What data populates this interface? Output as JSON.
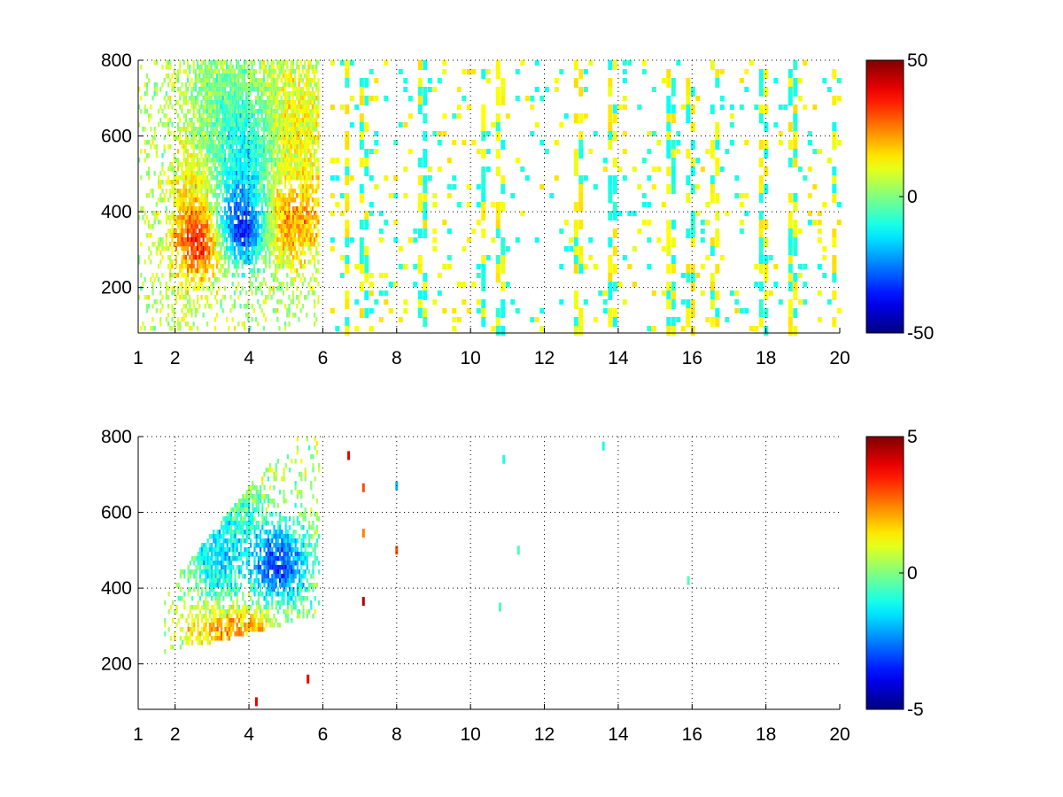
{
  "chart_data": [
    {
      "type": "heatmap",
      "title": "",
      "xlabel": "",
      "ylabel": "",
      "xlim": [
        1,
        20
      ],
      "ylim": [
        80,
        800
      ],
      "x_ticks": [
        "1",
        "2",
        "4",
        "6",
        "8",
        "10",
        "12",
        "14",
        "16",
        "18",
        "20"
      ],
      "x_tick_values": [
        1,
        2,
        4,
        6,
        8,
        10,
        12,
        14,
        16,
        18,
        20
      ],
      "y_ticks": [
        "200",
        "400",
        "600",
        "800"
      ],
      "y_tick_values": [
        200,
        400,
        600,
        800
      ],
      "grid": true,
      "colorbar": {
        "min": -50,
        "max": 50,
        "ticks": [
          "50",
          "0",
          "-50"
        ],
        "tick_values": [
          50,
          0,
          -50
        ],
        "colormap": "jet"
      },
      "blobs": [
        {
          "x": 2.7,
          "y": 320,
          "sx": 0.5,
          "sy": 60,
          "v": 22
        },
        {
          "x": 2.5,
          "y": 420,
          "sx": 0.45,
          "sy": 130,
          "v": 12
        },
        {
          "x": 3.8,
          "y": 360,
          "sx": 0.5,
          "sy": 70,
          "v": -38
        },
        {
          "x": 4.0,
          "y": 520,
          "sx": 0.6,
          "sy": 140,
          "v": -18
        },
        {
          "x": 4.9,
          "y": 380,
          "sx": 0.8,
          "sy": 80,
          "v": 18
        },
        {
          "x": 5.0,
          "y": 620,
          "sx": 0.8,
          "sy": 150,
          "v": 9
        },
        {
          "x": 3.3,
          "y": 650,
          "sx": 0.8,
          "sy": 150,
          "v": -6
        }
      ],
      "dense_region": {
        "x_range": [
          1,
          5.9
        ],
        "y_range": [
          80,
          800
        ]
      },
      "sparse_stripes": [
        6.6,
        7.1,
        8.6,
        10.3,
        10.8,
        12.9,
        13.8,
        15.4,
        15.9,
        16.6,
        17.9,
        18.7,
        19.8
      ]
    },
    {
      "type": "heatmap",
      "title": "",
      "xlabel": "",
      "ylabel": "",
      "xlim": [
        1,
        20
      ],
      "ylim": [
        80,
        800
      ],
      "x_ticks": [
        "1",
        "2",
        "4",
        "6",
        "8",
        "10",
        "12",
        "14",
        "16",
        "18",
        "20"
      ],
      "x_tick_values": [
        1,
        2,
        4,
        6,
        8,
        10,
        12,
        14,
        16,
        18,
        20
      ],
      "y_ticks": [
        "200",
        "400",
        "600",
        "800"
      ],
      "y_tick_values": [
        200,
        400,
        600,
        800
      ],
      "grid": true,
      "colorbar": {
        "min": -5,
        "max": 5,
        "ticks": [
          "5",
          "0",
          "-5"
        ],
        "tick_values": [
          5,
          0,
          -5
        ],
        "colormap": "jet"
      },
      "blobs": [
        {
          "x": 3.6,
          "y": 300,
          "sx": 0.9,
          "sy": 50,
          "v": 2
        },
        {
          "x": 3.1,
          "y": 480,
          "sx": 0.5,
          "sy": 90,
          "v": -1.8
        },
        {
          "x": 4.8,
          "y": 470,
          "sx": 0.6,
          "sy": 80,
          "v": -3.5
        },
        {
          "x": 3.7,
          "y": 600,
          "sx": 0.5,
          "sy": 120,
          "v": -0.5
        }
      ],
      "dense_region": {
        "x_range": [
          1.7,
          5.9
        ],
        "y_range": [
          200,
          790
        ]
      },
      "isolated_points": [
        {
          "x": 6.7,
          "y": 750,
          "v": 4
        },
        {
          "x": 7.1,
          "y": 665,
          "v": 3
        },
        {
          "x": 7.1,
          "y": 545,
          "v": 2.5
        },
        {
          "x": 7.1,
          "y": 365,
          "v": 4.5
        },
        {
          "x": 8.0,
          "y": 670,
          "v": -2
        },
        {
          "x": 8.0,
          "y": 500,
          "v": 3
        },
        {
          "x": 10.9,
          "y": 740,
          "v": -1
        },
        {
          "x": 11.3,
          "y": 500,
          "v": -0.5
        },
        {
          "x": 10.8,
          "y": 350,
          "v": -0.5
        },
        {
          "x": 13.6,
          "y": 775,
          "v": -1
        },
        {
          "x": 15.9,
          "y": 420,
          "v": -0.5
        },
        {
          "x": 5.6,
          "y": 160,
          "v": 4
        },
        {
          "x": 4.2,
          "y": 100,
          "v": 4
        }
      ]
    }
  ]
}
